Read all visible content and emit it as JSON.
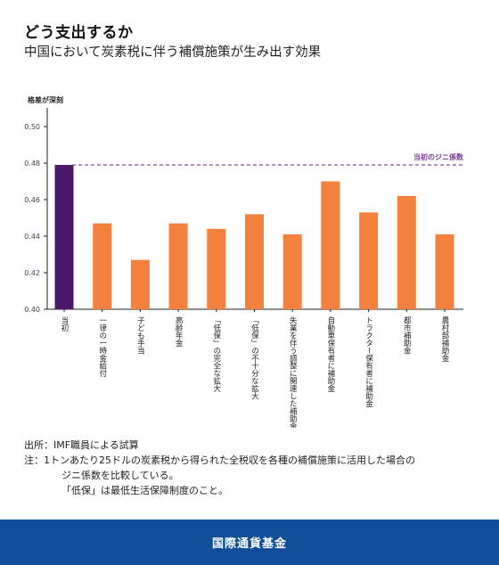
{
  "header": {
    "title": "どう支出するか",
    "subtitle": "中国において炭素税に伴う補償施策が生み出す効果"
  },
  "chart_data": {
    "type": "bar",
    "ylabel": "格差が深刻",
    "ylim": [
      0.4,
      0.5
    ],
    "yticks": [
      "0.40",
      "0.42",
      "0.44",
      "0.46",
      "0.48",
      "0.50"
    ],
    "categories": [
      "当初",
      "一律の一時金給付",
      "子ども手当",
      "高齢年金",
      "「低保」の完全な拡大",
      "「低保」の不十分な拡大",
      "失業を伴う調整に関連した補助金",
      "自動車保有者に補助金",
      "トラクター保有者に補助金",
      "都市補助金",
      "農村部補助金"
    ],
    "values": [
      0.479,
      0.447,
      0.427,
      0.447,
      0.444,
      0.452,
      0.441,
      0.47,
      0.453,
      0.462,
      0.441
    ],
    "reference_line": {
      "value": 0.479,
      "label": "当初のジニ係数"
    },
    "colors": {
      "initial": "#4b1869",
      "bar": "#f5813f",
      "reference": "#7a3a97"
    },
    "grid": false
  },
  "notes": {
    "source": "出所：IMF職員による試算",
    "note_prefix": "注：",
    "note_line1": "1トンあたり25ドルの炭素税から得られた全税収を各種の補償施策に活用した場合の",
    "note_line2": "ジニ係数を比較している。",
    "note_line3": "「低保」は最低生活保障制度のこと。"
  },
  "footer": {
    "org": "国際通貨基金"
  }
}
